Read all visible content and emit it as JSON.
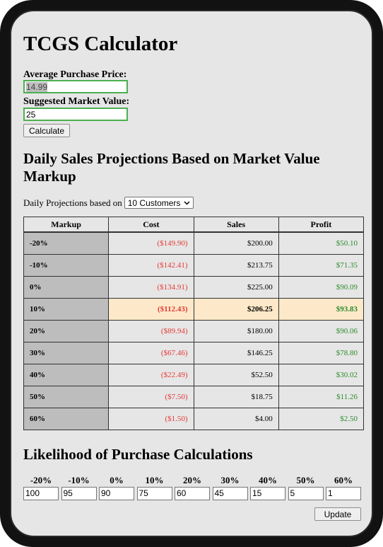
{
  "title": "TCGS Calculator",
  "inputs": {
    "purchase_label": "Average Purchase Price:",
    "purchase_value": "14.99",
    "market_label": "Suggested Market Value:",
    "market_value": "25",
    "calculate_label": "Calculate"
  },
  "projections": {
    "heading": "Daily Sales Projections Based on Market Value Markup",
    "based_on_label": "Daily Projections based on",
    "customers_selected": "10 Customers",
    "columns": [
      "Markup",
      "Cost",
      "Sales",
      "Profit"
    ],
    "rows": [
      {
        "markup": "-20%",
        "cost": "($149.90)",
        "sales": "$200.00",
        "profit": "$50.10"
      },
      {
        "markup": "-10%",
        "cost": "($142.41)",
        "sales": "$213.75",
        "profit": "$71.35"
      },
      {
        "markup": "0%",
        "cost": "($134.91)",
        "sales": "$225.00",
        "profit": "$90.09"
      },
      {
        "markup": "10%",
        "cost": "($112.43)",
        "sales": "$206.25",
        "profit": "$93.83"
      },
      {
        "markup": "20%",
        "cost": "($89.94)",
        "sales": "$180.00",
        "profit": "$90.06"
      },
      {
        "markup": "30%",
        "cost": "($67.46)",
        "sales": "$146.25",
        "profit": "$78.80"
      },
      {
        "markup": "40%",
        "cost": "($22.49)",
        "sales": "$52.50",
        "profit": "$30.02"
      },
      {
        "markup": "50%",
        "cost": "($7.50)",
        "sales": "$18.75",
        "profit": "$11.26"
      },
      {
        "markup": "60%",
        "cost": "($1.50)",
        "sales": "$4.00",
        "profit": "$2.50"
      }
    ],
    "highlight_index": 3
  },
  "likelihood": {
    "heading": "Likelihood of Purchase Calculations",
    "items": [
      {
        "label": "-20%",
        "value": "100"
      },
      {
        "label": "-10%",
        "value": "95"
      },
      {
        "label": "0%",
        "value": "90"
      },
      {
        "label": "10%",
        "value": "75"
      },
      {
        "label": "20%",
        "value": "60"
      },
      {
        "label": "30%",
        "value": "45"
      },
      {
        "label": "40%",
        "value": "15"
      },
      {
        "label": "50%",
        "value": "5"
      },
      {
        "label": "60%",
        "value": "1"
      }
    ],
    "update_label": "Update"
  },
  "colors": {
    "cost": "#e53935",
    "profit": "#2e8b2e",
    "highlight": "#fde9c9",
    "markup_cell": "#bdbdbd"
  }
}
